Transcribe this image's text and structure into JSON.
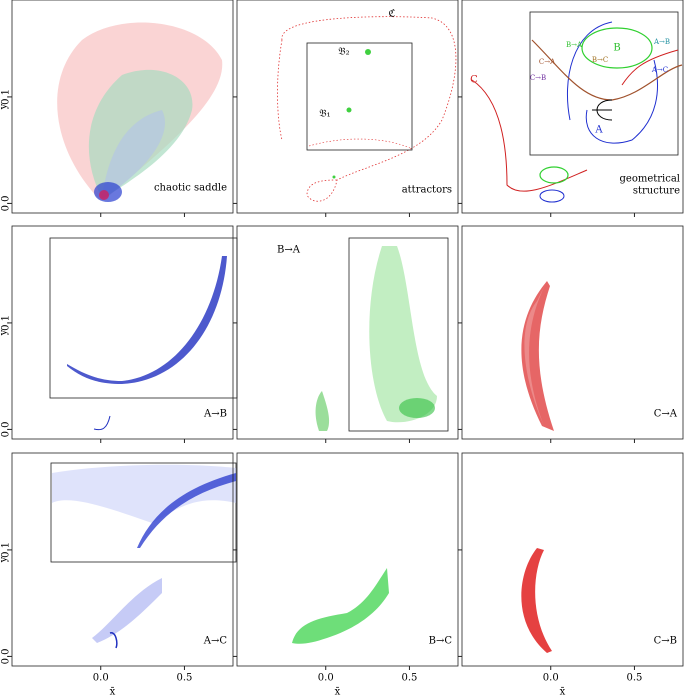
{
  "chart_data": {
    "type": "scatter",
    "xlabel": "x̄",
    "ylabel": "ȳ",
    "xlim": [
      -0.53,
      0.79
    ],
    "ylim": [
      -0.009,
      0.191
    ],
    "xticks": [
      {
        "value": 0,
        "label": "0.0"
      },
      {
        "value": 0.5,
        "label": "0.5"
      }
    ],
    "yticks": [
      {
        "value": 0,
        "label": "0.0"
      },
      0.1
    ],
    "panels": [
      {
        "label": [
          "chaotic saddle"
        ]
      },
      {
        "label": [
          "attractors"
        ],
        "annotations": [
          "𝔅₂",
          "𝔅₁",
          "ℭ"
        ]
      },
      {
        "label": [
          "geometrical",
          "structure"
        ],
        "annotations": [
          "A",
          "B",
          "C",
          "A→B",
          "B→A",
          "B→C",
          "C→A",
          "A→C",
          "C→B"
        ]
      },
      {
        "label": [
          "A→B"
        ]
      },
      {
        "label": [
          "B→A"
        ]
      },
      {
        "label": [
          "C→A"
        ]
      },
      {
        "label": [
          "A→C"
        ]
      },
      {
        "label": [
          "B→C"
        ]
      },
      {
        "label": [
          "C→B"
        ]
      }
    ]
  }
}
